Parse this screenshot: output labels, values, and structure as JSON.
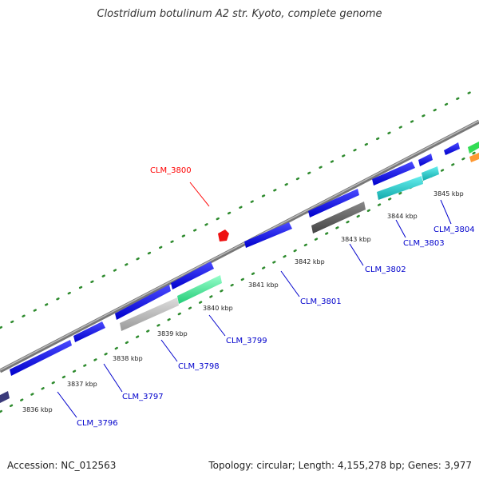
{
  "title": "Clostridium botulinum A2 str. Kyoto, complete genome",
  "footer": {
    "accession": "Accession: NC_012563",
    "summary": "Topology: circular; Length: 4,155,278 bp; Genes: 3,977"
  },
  "ticks": [
    {
      "label": "3836 kbp"
    },
    {
      "label": "3837 kbp"
    },
    {
      "label": "3838 kbp"
    },
    {
      "label": "3839 kbp"
    },
    {
      "label": "3840 kbp"
    },
    {
      "label": "3841 kbp"
    },
    {
      "label": "3842 kbp"
    },
    {
      "label": "3843 kbp"
    },
    {
      "label": "3844 kbp"
    },
    {
      "label": "3845 kbp"
    }
  ],
  "genes": [
    {
      "label": "CLM_3796",
      "color": "#0000cc"
    },
    {
      "label": "CLM_3797",
      "color": "#0000cc"
    },
    {
      "label": "CLM_3798",
      "color": "#0000cc"
    },
    {
      "label": "CLM_3799",
      "color": "#0000cc"
    },
    {
      "label": "CLM_3800",
      "color": "#ff0000"
    },
    {
      "label": "CLM_3801",
      "color": "#0000cc"
    },
    {
      "label": "CLM_3802",
      "color": "#0000cc"
    },
    {
      "label": "CLM_3803",
      "color": "#0000cc"
    },
    {
      "label": "CLM_3804",
      "color": "#0000cc"
    }
  ],
  "colors": {
    "cds_forward": "#1a1aee",
    "cds_reverse_gray": "#bbbbbb",
    "cds_reverse_dark": "#666666",
    "cds_teal": "#22cccc",
    "cds_mint": "#33ee99",
    "backbone": "#888888",
    "tick": "#2e8b2e",
    "highlight": "#ee1111"
  }
}
